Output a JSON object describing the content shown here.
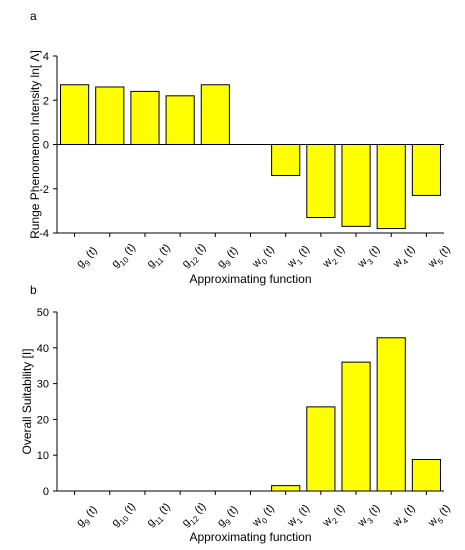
{
  "chart_data": [
    {
      "panel_label": "a",
      "type": "bar",
      "xlabel": "Approximating function",
      "ylabel": "Runge Phenomenon Intensity ln[ Λ]",
      "ylim": [
        -4,
        4
      ],
      "yticks": [
        -4,
        -2,
        0,
        2,
        4
      ],
      "grid": false,
      "bar_color": "#ffff00",
      "categories": [
        {
          "base": "g",
          "sub": "9",
          "arg": " (t)"
        },
        {
          "base": "g",
          "sub": "10",
          "arg": " (t)"
        },
        {
          "base": "g",
          "sub": "11",
          "arg": " (t)"
        },
        {
          "base": "g",
          "sub": "12",
          "arg": " (t)"
        },
        {
          "base": "g",
          "sub": "9",
          "arg": " (t)"
        },
        {
          "base": "w",
          "sub": "0",
          "arg": " (t)"
        },
        {
          "base": "w",
          "sub": "1",
          "arg": " (t)"
        },
        {
          "base": "w",
          "sub": "2",
          "arg": " (t)"
        },
        {
          "base": "w",
          "sub": "3",
          "arg": " (t)"
        },
        {
          "base": "w",
          "sub": "4",
          "arg": " (t)"
        },
        {
          "base": "w",
          "sub": "5",
          "arg": " (t)"
        }
      ],
      "values": [
        2.7,
        2.6,
        2.4,
        2.2,
        2.7,
        0,
        -1.4,
        -3.3,
        -3.7,
        -3.8,
        -2.3
      ]
    },
    {
      "panel_label": "b",
      "type": "bar",
      "xlabel": "Approximating function",
      "ylabel": "Overall Suitability [I]",
      "ylim": [
        0,
        50
      ],
      "yticks": [
        0,
        10,
        20,
        30,
        40,
        50
      ],
      "grid": false,
      "bar_color": "#ffff00",
      "categories": [
        {
          "base": "g",
          "sub": "9",
          "arg": " (t)"
        },
        {
          "base": "g",
          "sub": "10",
          "arg": " (t)"
        },
        {
          "base": "g",
          "sub": "11",
          "arg": " (t)"
        },
        {
          "base": "g",
          "sub": "12",
          "arg": " (t)"
        },
        {
          "base": "g",
          "sub": "9",
          "arg": " (t)"
        },
        {
          "base": "w",
          "sub": "0",
          "arg": " (t)"
        },
        {
          "base": "w",
          "sub": "1",
          "arg": " (t)"
        },
        {
          "base": "w",
          "sub": "2",
          "arg": " (t)"
        },
        {
          "base": "w",
          "sub": "3",
          "arg": " (t)"
        },
        {
          "base": "w",
          "sub": "4",
          "arg": " (t)"
        },
        {
          "base": "w",
          "sub": "5",
          "arg": " (t)"
        }
      ],
      "values": [
        0,
        0,
        0,
        0,
        0,
        0,
        1.5,
        23.5,
        36,
        42.8,
        8.8
      ]
    }
  ]
}
